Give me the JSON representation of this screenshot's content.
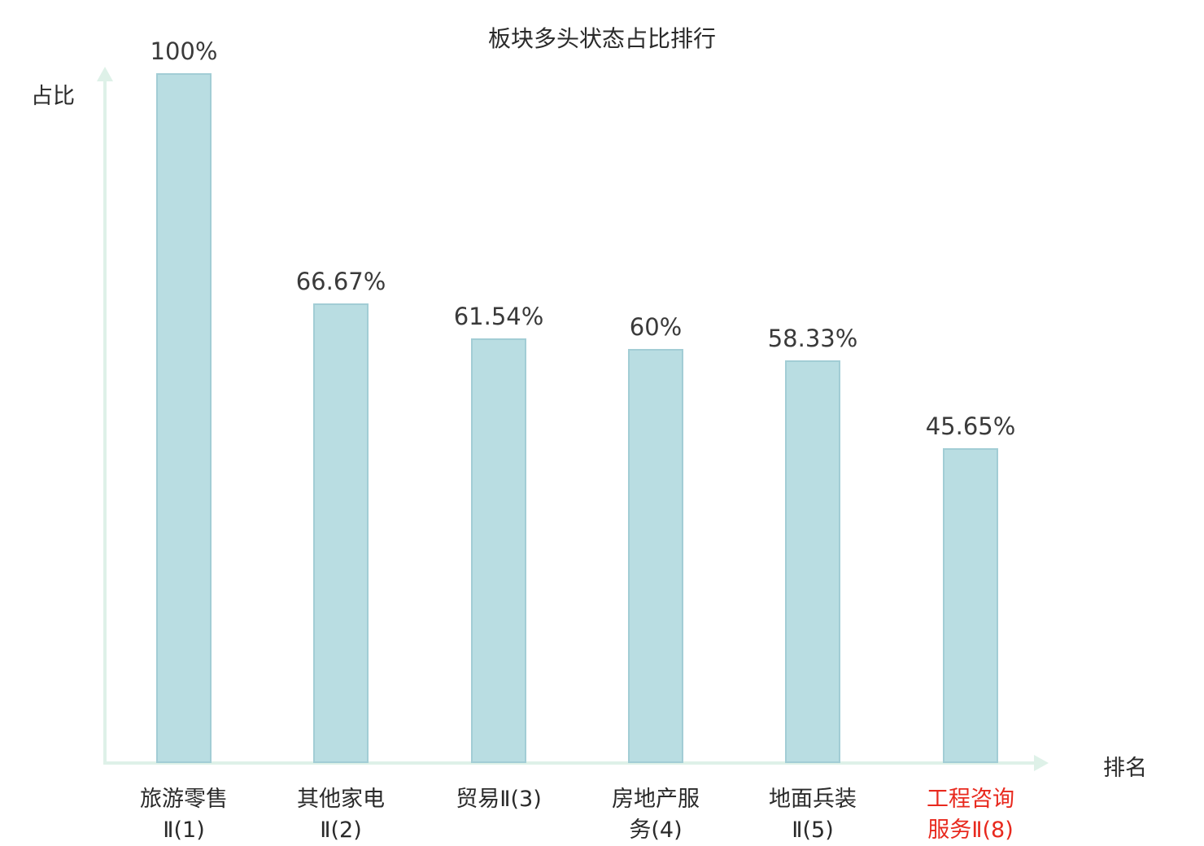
{
  "chart_data": {
    "type": "bar",
    "title": "板块多头状态占比排行",
    "xlabel": "排名",
    "ylabel": "占比",
    "categories": [
      "旅游零售Ⅱ(1)",
      "其他家电Ⅱ(2)",
      "贸易Ⅱ(3)",
      "房地产服务(4)",
      "地面兵装Ⅱ(5)",
      "工程咨询服务Ⅱ(8)"
    ],
    "category_lines": [
      [
        "旅游零售",
        "Ⅱ(1)"
      ],
      [
        "其他家电",
        "Ⅱ(2)"
      ],
      [
        "贸易Ⅱ(3)"
      ],
      [
        "房地产服",
        "务(4)"
      ],
      [
        "地面兵装",
        "Ⅱ(5)"
      ],
      [
        "工程咨询",
        "服务Ⅱ(8)"
      ]
    ],
    "values": [
      100,
      66.67,
      61.54,
      60,
      58.33,
      45.65
    ],
    "value_labels": [
      "100%",
      "66.67%",
      "61.54%",
      "60%",
      "58.33%",
      "45.65%"
    ],
    "highlight_index": 5,
    "ylim": [
      0,
      100
    ],
    "grid": false,
    "legend": "none",
    "bar_color": "#b9dde2",
    "bar_border_color": "#a2cdd5",
    "axis_color": "#def1e8",
    "text_color": "#2a2a2a",
    "value_label_color": "#3a3a3a",
    "highlight_color": "#e8291e"
  }
}
